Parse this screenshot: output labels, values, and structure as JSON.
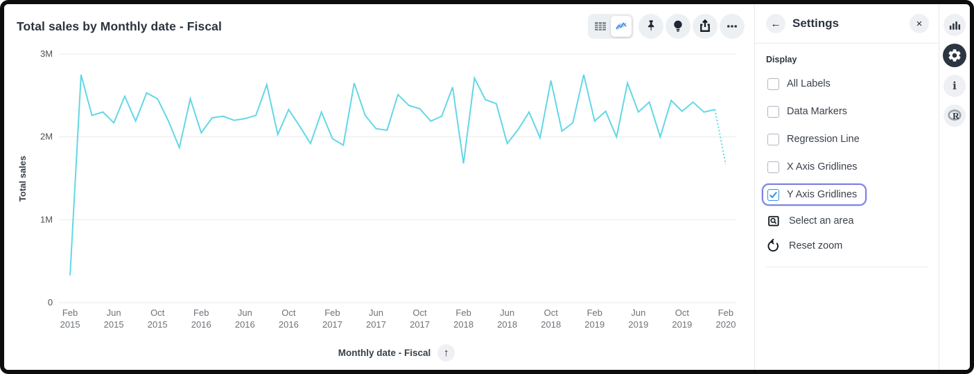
{
  "header": {
    "title": "Total sales by Monthly date - Fiscal"
  },
  "toolbar": {
    "icons": [
      "table-view-icon",
      "line-chart-view-icon",
      "pin-icon",
      "lightbulb-icon",
      "share-icon",
      "ellipsis-icon"
    ],
    "active_view": "line-chart"
  },
  "settings": {
    "title": "Settings",
    "icons": [
      "arrow-left-icon",
      "close-icon"
    ],
    "section_label": "Display",
    "checkboxes": [
      {
        "label": "All Labels",
        "checked": false,
        "focused": false
      },
      {
        "label": "Data Markers",
        "checked": false,
        "focused": false
      },
      {
        "label": "Regression Line",
        "checked": false,
        "focused": false
      },
      {
        "label": "X Axis Gridlines",
        "checked": false,
        "focused": false
      },
      {
        "label": "Y Axis Gridlines",
        "checked": true,
        "focused": true
      }
    ],
    "actions": [
      {
        "label": "Select an area",
        "icon": "select-area-icon"
      },
      {
        "label": "Reset zoom",
        "icon": "reset-zoom-icon"
      }
    ]
  },
  "icon_rail": [
    "bar-chart-icon",
    "gear-icon",
    "info-icon",
    "r-logo-icon"
  ],
  "colors": {
    "line": "#62d7e6",
    "gridline": "#e8e9ea",
    "checkbox_blue": "#2e90ea",
    "focus_ring": "#7d82e4",
    "active_icon_bg": "#2d3542",
    "accent_chart_icon": "#4a90e2"
  },
  "chart_data": {
    "type": "line",
    "title": "Total sales by Monthly date - Fiscal",
    "xlabel": "Monthly date - Fiscal",
    "ylabel": "Total sales",
    "ylim": [
      0,
      3000000
    ],
    "grid": "y-gridlines-only",
    "legend": "none",
    "line_color": "#62d7e6",
    "last_segment_style": "dotted",
    "y_ticks": [
      {
        "v": 0,
        "label": "0"
      },
      {
        "v": 1000000,
        "label": "1M"
      },
      {
        "v": 2000000,
        "label": "2M"
      },
      {
        "v": 3000000,
        "label": "3M"
      }
    ],
    "x_tick_indices": [
      0,
      4,
      8,
      12,
      16,
      20,
      24,
      28,
      32,
      36,
      40,
      44,
      48,
      52,
      56,
      60
    ],
    "months": [
      "Feb 2015",
      "Mar 2015",
      "Apr 2015",
      "May 2015",
      "Jun 2015",
      "Jul 2015",
      "Aug 2015",
      "Sep 2015",
      "Oct 2015",
      "Nov 2015",
      "Dec 2015",
      "Jan 2016",
      "Feb 2016",
      "Mar 2016",
      "Apr 2016",
      "May 2016",
      "Jun 2016",
      "Jul 2016",
      "Aug 2016",
      "Sep 2016",
      "Oct 2016",
      "Nov 2016",
      "Dec 2016",
      "Jan 2017",
      "Feb 2017",
      "Mar 2017",
      "Apr 2017",
      "May 2017",
      "Jun 2017",
      "Jul 2017",
      "Aug 2017",
      "Sep 2017",
      "Oct 2017",
      "Nov 2017",
      "Dec 2017",
      "Jan 2018",
      "Feb 2018",
      "Mar 2018",
      "Apr 2018",
      "May 2018",
      "Jun 2018",
      "Jul 2018",
      "Aug 2018",
      "Sep 2018",
      "Oct 2018",
      "Nov 2018",
      "Dec 2018",
      "Jan 2019",
      "Feb 2019",
      "Mar 2019",
      "Apr 2019",
      "May 2019",
      "Jun 2019",
      "Jul 2019",
      "Aug 2019",
      "Sep 2019",
      "Oct 2019",
      "Nov 2019",
      "Dec 2019",
      "Jan 2020",
      "Feb 2020"
    ],
    "values": [
      330000,
      2750000,
      2260000,
      2300000,
      2170000,
      2490000,
      2190000,
      2530000,
      2460000,
      2190000,
      1870000,
      2460000,
      2050000,
      2230000,
      2250000,
      2200000,
      2220000,
      2260000,
      2630000,
      2030000,
      2330000,
      2130000,
      1920000,
      2300000,
      1980000,
      1900000,
      2650000,
      2260000,
      2100000,
      2080000,
      2510000,
      2380000,
      2340000,
      2190000,
      2250000,
      2600000,
      1680000,
      2710000,
      2450000,
      2400000,
      1920000,
      2090000,
      2300000,
      1990000,
      2680000,
      2070000,
      2170000,
      2750000,
      2190000,
      2310000,
      2000000,
      2650000,
      2300000,
      2420000,
      2000000,
      2440000,
      2310000,
      2420000,
      2300000,
      2330000,
      1670000
    ]
  }
}
